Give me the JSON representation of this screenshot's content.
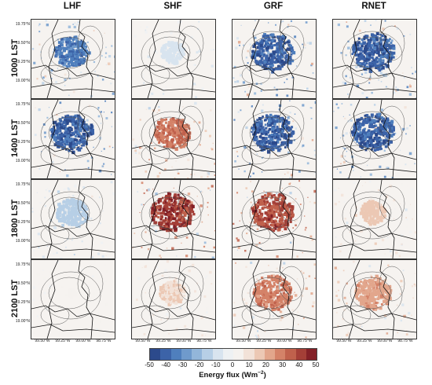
{
  "columns": [
    "LHF",
    "SHF",
    "GRF",
    "RNET"
  ],
  "rows": [
    "1000 LST",
    "1400 LST",
    "1800 LST",
    "2100 LST"
  ],
  "y_tick_labels": [
    "19.75°N",
    "19.50°N",
    "19.25°N",
    "19.00°N"
  ],
  "x_tick_labels": [
    "99.50°W",
    "99.25°W",
    "99.00°W",
    "98.75°W"
  ],
  "colorbar": {
    "label": "Energy flux (Wm",
    "label_sup": "−2",
    "label_close": ")",
    "ticks": [
      "-50",
      "-40",
      "-30",
      "-20",
      "-10",
      "0",
      "10",
      "20",
      "30",
      "40",
      "50"
    ],
    "colors": [
      "#2c4a8c",
      "#3c63a8",
      "#4f7fbd",
      "#6f9acc",
      "#93b6da",
      "#b7cfe6",
      "#d8e4ef",
      "#eef1f3",
      "#f5f2ef",
      "#f2e2d8",
      "#ecc8b4",
      "#e2a68c",
      "#d48268",
      "#c0614c",
      "#a43f37",
      "#832027"
    ]
  },
  "panels": [
    {
      "row": "1000 LST",
      "col": "LHF",
      "level": -0.85,
      "extent": 0.8
    },
    {
      "row": "1000 LST",
      "col": "SHF",
      "level": -0.25,
      "extent": 0.55
    },
    {
      "row": "1000 LST",
      "col": "GRF",
      "level": -1.0,
      "extent": 1.0
    },
    {
      "row": "1000 LST",
      "col": "RNET",
      "level": -1.0,
      "extent": 1.0
    },
    {
      "row": "1400 LST",
      "col": "LHF",
      "level": -1.0,
      "extent": 1.0
    },
    {
      "row": "1400 LST",
      "col": "SHF",
      "level": 0.75,
      "extent": 0.85
    },
    {
      "row": "1400 LST",
      "col": "GRF",
      "level": -1.0,
      "extent": 1.0
    },
    {
      "row": "1400 LST",
      "col": "RNET",
      "level": -1.0,
      "extent": 1.0
    },
    {
      "row": "1800 LST",
      "col": "LHF",
      "level": -0.4,
      "extent": 0.75
    },
    {
      "row": "1800 LST",
      "col": "SHF",
      "level": 1.0,
      "extent": 1.0
    },
    {
      "row": "1800 LST",
      "col": "GRF",
      "level": 0.95,
      "extent": 1.0
    },
    {
      "row": "1800 LST",
      "col": "RNET",
      "level": 0.35,
      "extent": 0.6
    },
    {
      "row": "2100 LST",
      "col": "LHF",
      "level": 0.05,
      "extent": 0.15
    },
    {
      "row": "2100 LST",
      "col": "SHF",
      "level": 0.3,
      "extent": 0.6
    },
    {
      "row": "2100 LST",
      "col": "GRF",
      "level": 0.7,
      "extent": 0.9
    },
    {
      "row": "2100 LST",
      "col": "RNET",
      "level": 0.55,
      "extent": 0.85
    }
  ]
}
